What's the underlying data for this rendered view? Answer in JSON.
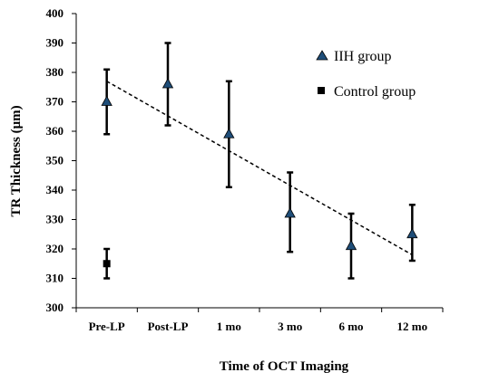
{
  "chart_data": {
    "type": "scatter",
    "title": "",
    "xlabel": "Time of OCT Imaging",
    "ylabel": "TR Thickness (μm)",
    "ylim": [
      300,
      400
    ],
    "yticks": [
      300,
      310,
      320,
      330,
      340,
      350,
      360,
      370,
      380,
      390,
      400
    ],
    "categories": [
      "Pre-LP",
      "Post-LP",
      "1 mo",
      "3 mo",
      "6 mo",
      "12 mo"
    ],
    "grid": false,
    "legend_position": "top-right",
    "series": [
      {
        "name": "IIH group",
        "marker": "triangle",
        "color": "#1f4e79",
        "edge_color": "#000000",
        "values": [
          370,
          376,
          359,
          332,
          321,
          325
        ],
        "err_low": [
          359,
          362,
          341,
          319,
          310,
          316
        ],
        "err_high": [
          381,
          390,
          377,
          346,
          332,
          335
        ]
      },
      {
        "name": "Control group",
        "marker": "square",
        "color": "#000000",
        "values": [
          315,
          null,
          null,
          null,
          null,
          null
        ],
        "err_low": [
          310,
          null,
          null,
          null,
          null,
          null
        ],
        "err_high": [
          320,
          null,
          null,
          null,
          null,
          null
        ]
      }
    ],
    "trendline": {
      "series": "IIH group",
      "style": "dashed",
      "color": "#000000",
      "start": {
        "category": "Pre-LP",
        "value": 377
      },
      "end": {
        "category": "12 mo",
        "value": 318
      }
    }
  }
}
